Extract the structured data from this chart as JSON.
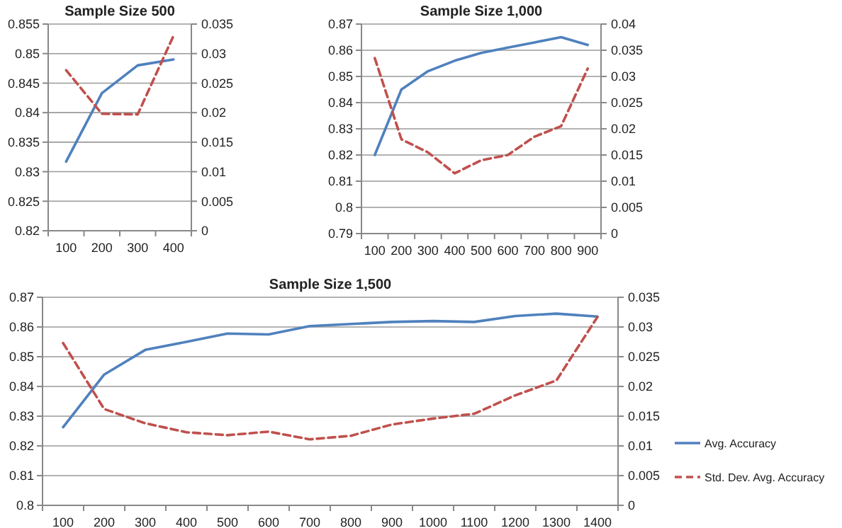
{
  "chart_data": [
    {
      "type": "line",
      "title": "Sample Size 500",
      "categories": [
        "100",
        "200",
        "300",
        "400"
      ],
      "series": [
        {
          "color": "#4f81bd",
          "values": [
            0.8317,
            0.8433,
            0.848,
            0.849
          ],
          "line_style": "solid"
        },
        {
          "color": "#c0504d",
          "values": [
            0.0272,
            0.0198,
            0.0197,
            0.033
          ],
          "line_style": "dashed",
          "axis": "y2"
        }
      ],
      "ylim": [
        0.82,
        0.855
      ],
      "yticks": [
        0.82,
        0.825,
        0.83,
        0.835,
        0.84,
        0.845,
        0.85,
        0.855
      ],
      "y2lim": [
        0,
        0.035
      ],
      "y2ticks": [
        0,
        0.005,
        0.01,
        0.015,
        0.02,
        0.025,
        0.03,
        0.035
      ],
      "grid": "y",
      "legend": false
    },
    {
      "type": "line",
      "title": "Sample Size 1,000",
      "categories": [
        "100",
        "200",
        "300",
        "400",
        "500",
        "600",
        "700",
        "800",
        "900"
      ],
      "series": [
        {
          "color": "#4f81bd",
          "values": [
            0.82,
            0.845,
            0.852,
            0.856,
            0.859,
            0.861,
            0.863,
            0.865,
            0.862
          ],
          "line_style": "solid"
        },
        {
          "color": "#c0504d",
          "values": [
            0.0335,
            0.018,
            0.0155,
            0.0115,
            0.014,
            0.015,
            0.0185,
            0.0205,
            0.0315
          ],
          "line_style": "dashed",
          "axis": "y2"
        }
      ],
      "ylim": [
        0.79,
        0.87
      ],
      "yticks": [
        0.79,
        0.8,
        0.81,
        0.82,
        0.83,
        0.84,
        0.85,
        0.86,
        0.87
      ],
      "y2lim": [
        0,
        0.04
      ],
      "y2ticks": [
        0,
        0.005,
        0.01,
        0.015,
        0.02,
        0.025,
        0.03,
        0.035,
        0.04
      ],
      "grid": "y",
      "legend": false
    },
    {
      "type": "line",
      "title": "Sample Size 1,500",
      "categories": [
        "100",
        "200",
        "300",
        "400",
        "500",
        "600",
        "700",
        "800",
        "900",
        "1000",
        "1100",
        "1200",
        "1300",
        "1400"
      ],
      "series": [
        {
          "name": "Avg. Accuracy",
          "color": "#4f81bd",
          "values": [
            0.8263,
            0.844,
            0.8523,
            0.855,
            0.8578,
            0.8575,
            0.8603,
            0.861,
            0.8617,
            0.862,
            0.8617,
            0.8637,
            0.8645,
            0.8635
          ],
          "line_style": "solid"
        },
        {
          "name": "Std. Dev. Avg. Accuracy",
          "color": "#c0504d",
          "values": [
            0.0273,
            0.0162,
            0.0138,
            0.0123,
            0.0118,
            0.0124,
            0.0111,
            0.0117,
            0.0136,
            0.0146,
            0.0154,
            0.0185,
            0.021,
            0.0317
          ],
          "line_style": "dashed",
          "axis": "y2"
        }
      ],
      "ylim": [
        0.8,
        0.87
      ],
      "yticks": [
        0.8,
        0.81,
        0.82,
        0.83,
        0.84,
        0.85,
        0.86,
        0.87
      ],
      "y2lim": [
        0,
        0.035
      ],
      "y2ticks": [
        0,
        0.005,
        0.01,
        0.015,
        0.02,
        0.025,
        0.03,
        0.035
      ],
      "grid": "y",
      "legend": "right"
    }
  ]
}
